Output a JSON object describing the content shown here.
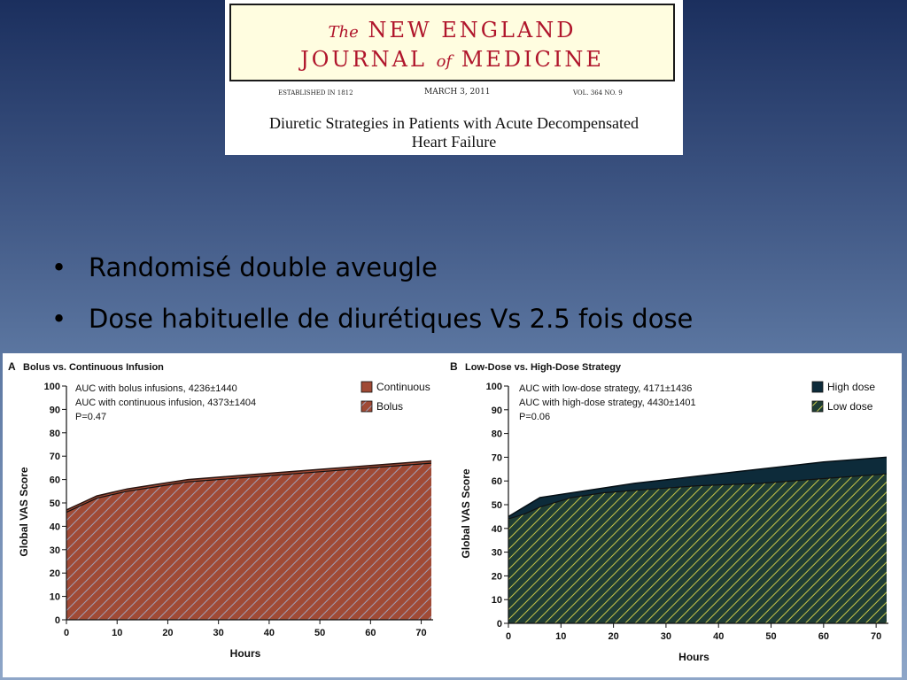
{
  "journal": {
    "the": "The",
    "line1": "NEW ENGLAND",
    "line2a": "JOURNAL",
    "of": "of",
    "line2b": "MEDICINE",
    "established": "ESTABLISHED IN 1812",
    "date": "MARCH 3, 2011",
    "volume": "VOL. 364   NO. 9",
    "article_title_line1": "Diuretic Strategies in Patients with Acute Decompensated",
    "article_title_line2": "Heart Failure"
  },
  "bullets": [
    "Randomisé double aveugle",
    "Dose habituelle de diurétiques Vs 2.5 fois dose"
  ],
  "colors": {
    "continuous": "#a04a35",
    "bolus_hatch": "#a0a0b8",
    "high_dose": "#0d2b3a",
    "low_dose": "#1f3d35",
    "low_dose_hatch": "#c9c94a",
    "masthead_red": "#b0162c"
  },
  "chart_data": [
    {
      "type": "area",
      "panel": "A",
      "title": "Bolus vs. Continuous Infusion",
      "xlabel": "Hours",
      "ylabel": "Global VAS Score",
      "xlim": [
        0,
        72
      ],
      "ylim": [
        0,
        100
      ],
      "xticks": [
        0,
        10,
        20,
        30,
        40,
        50,
        60,
        70
      ],
      "yticks": [
        0,
        10,
        20,
        30,
        40,
        50,
        60,
        70,
        80,
        90,
        100
      ],
      "annotations": [
        "AUC with bolus infusions, 4236±1440",
        "AUC with continuous infusion, 4373±1404",
        "P=0.47"
      ],
      "legend": [
        "Continuous",
        "Bolus"
      ],
      "grid": false,
      "legend_position": "top-right",
      "series": [
        {
          "name": "Continuous",
          "x": [
            0,
            3,
            6,
            12,
            18,
            24,
            36,
            48,
            60,
            72
          ],
          "y": [
            47,
            50,
            53,
            56,
            58,
            60,
            62,
            64,
            66,
            68
          ]
        },
        {
          "name": "Bolus",
          "x": [
            0,
            3,
            6,
            12,
            18,
            24,
            36,
            48,
            60,
            72
          ],
          "y": [
            46,
            49,
            52,
            55,
            57,
            59,
            61,
            63,
            65,
            67
          ]
        }
      ]
    },
    {
      "type": "area",
      "panel": "B",
      "title": "Low-Dose vs. High-Dose Strategy",
      "xlabel": "Hours",
      "ylabel": "Global VAS Score",
      "xlim": [
        0,
        72
      ],
      "ylim": [
        0,
        100
      ],
      "xticks": [
        0,
        10,
        20,
        30,
        40,
        50,
        60,
        70
      ],
      "yticks": [
        0,
        10,
        20,
        30,
        40,
        50,
        60,
        70,
        80,
        90,
        100
      ],
      "annotations": [
        "AUC with low-dose strategy, 4171±1436",
        "AUC with high-dose strategy, 4430±1401",
        "P=0.06"
      ],
      "legend": [
        "High dose",
        "Low dose"
      ],
      "grid": false,
      "legend_position": "top-right",
      "series": [
        {
          "name": "High dose",
          "x": [
            0,
            3,
            6,
            12,
            18,
            24,
            36,
            48,
            60,
            72
          ],
          "y": [
            45,
            49,
            53,
            55,
            57,
            59,
            62,
            65,
            68,
            70
          ]
        },
        {
          "name": "Low dose",
          "x": [
            0,
            3,
            6,
            12,
            18,
            24,
            36,
            48,
            60,
            72
          ],
          "y": [
            44,
            46,
            49,
            53,
            55,
            56,
            58,
            59,
            61,
            63
          ]
        }
      ]
    }
  ]
}
